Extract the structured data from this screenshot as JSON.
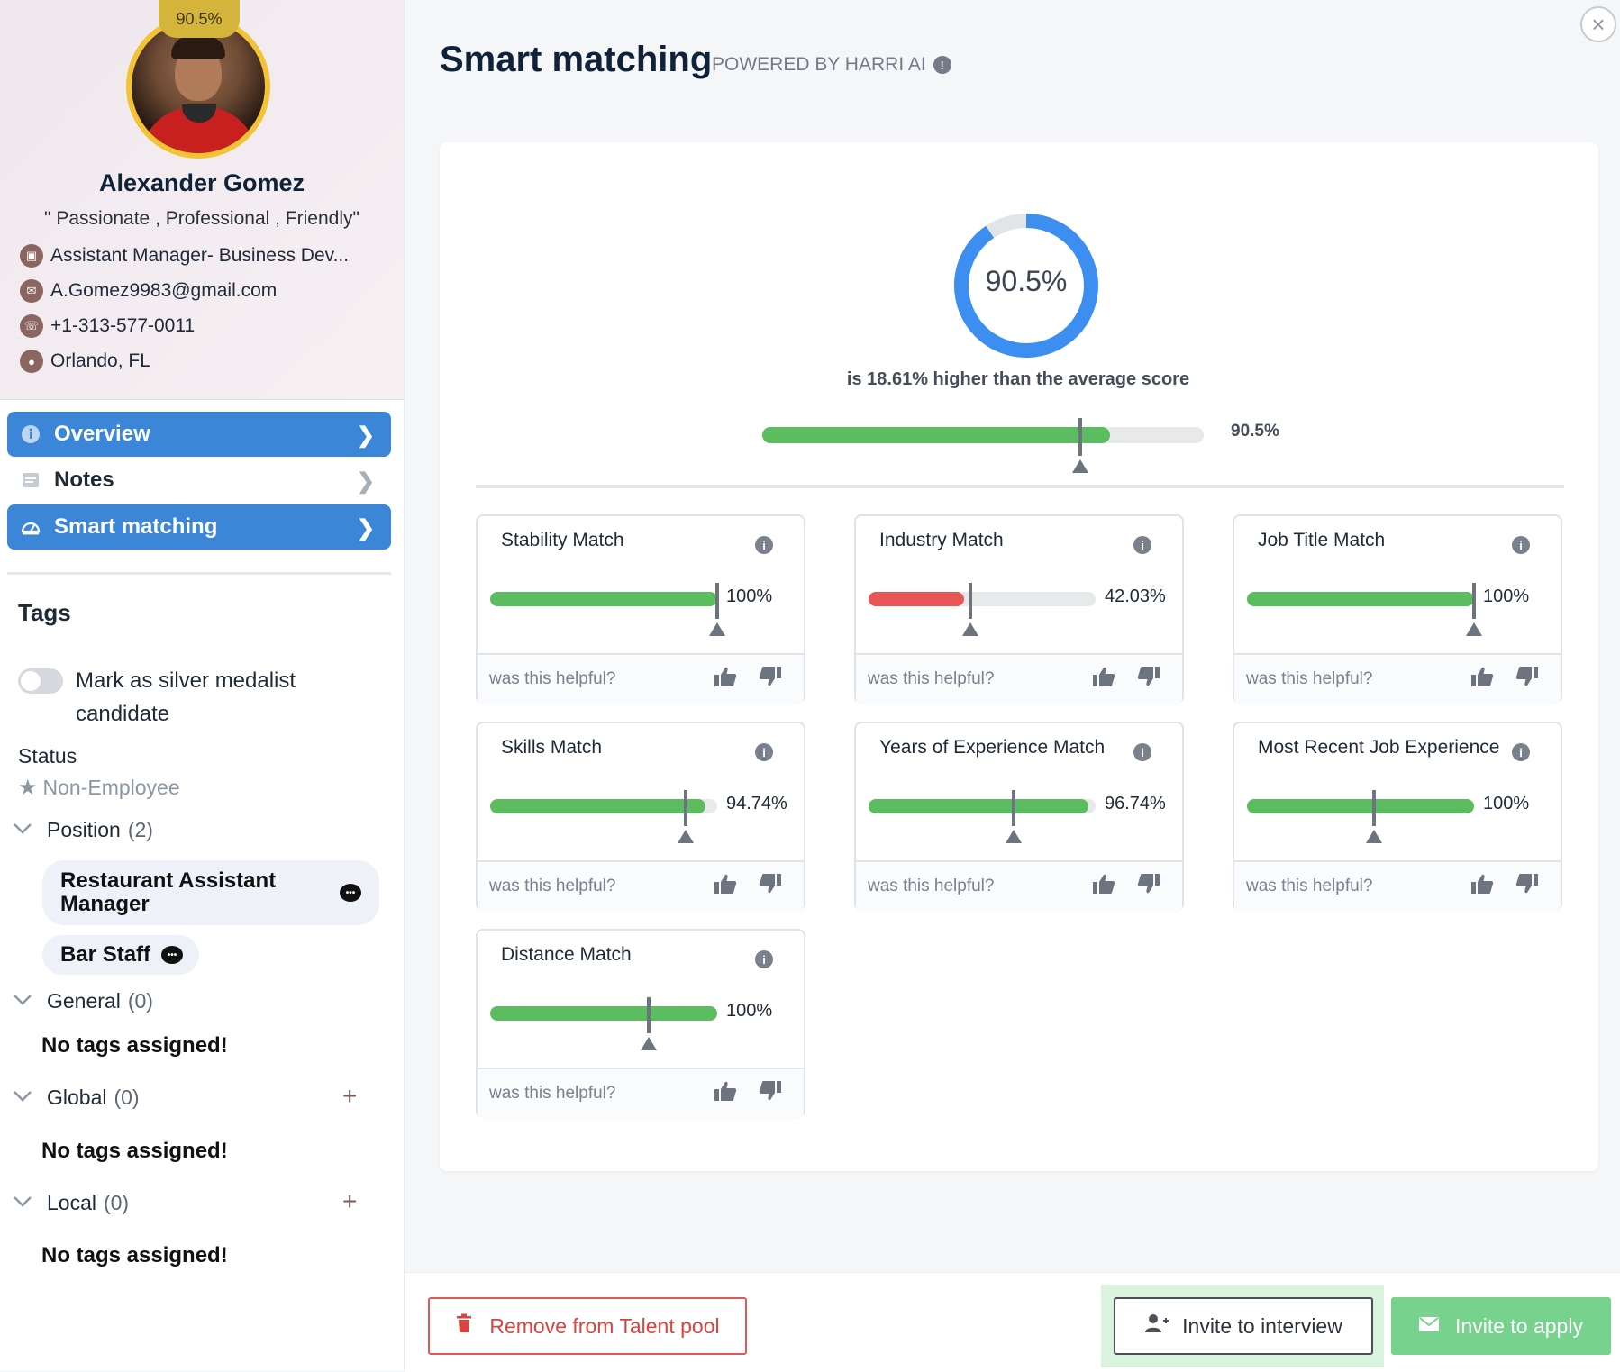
{
  "profile": {
    "score_badge": "90.5%",
    "name": "Alexander Gomez",
    "tagline": "\" Passionate , Professional , Friendly\"",
    "job": "Assistant Manager- Business Dev...",
    "email": "A.Gomez9983@gmail.com",
    "phone": "+1-313-577-0011",
    "location": "Orlando, FL"
  },
  "nav": [
    {
      "label": "Overview",
      "icon": "info-icon",
      "active": true
    },
    {
      "label": "Notes",
      "icon": "notes-icon",
      "active": false
    },
    {
      "label": "Smart matching",
      "icon": "gauge-icon",
      "active": true
    }
  ],
  "tags": {
    "title": "Tags",
    "silver_medalist_label": "Mark as silver medalist candidate",
    "silver_medalist_on": false,
    "status_label": "Status",
    "status_value": "Non-Employee",
    "groups": {
      "position": {
        "label": "Position",
        "count": "(2)",
        "chips": [
          "Restaurant Assistant Manager",
          "Bar Staff"
        ]
      },
      "general": {
        "label": "General",
        "count": "(0)",
        "empty": "No tags assigned!"
      },
      "global": {
        "label": "Global",
        "count": "(0)",
        "empty": "No tags assigned!"
      },
      "local": {
        "label": "Local",
        "count": "(0)",
        "empty": "No tags assigned!"
      }
    }
  },
  "main": {
    "title": "Smart matching",
    "powered_by": "POWERED BY HARRI AI",
    "overall": {
      "score_label": "90.5%",
      "score": 90.5,
      "average_text": "is 18.61% higher than the average score",
      "bar_value_label": "90.5%",
      "average_score": 71.89
    },
    "helpful_prompt": "was this helpful?",
    "matches": [
      {
        "title": "Stability Match",
        "value": 100,
        "label": "100%",
        "average": 100,
        "color": "#5bbd5f"
      },
      {
        "title": "Industry Match",
        "value": 42.03,
        "label": "42.03%",
        "average": 45,
        "color": "#e85656"
      },
      {
        "title": "Job Title Match",
        "value": 100,
        "label": "100%",
        "average": 100,
        "color": "#5bbd5f"
      },
      {
        "title": "Skills Match",
        "value": 94.74,
        "label": "94.74%",
        "average": 86,
        "color": "#5bbd5f"
      },
      {
        "title": "Years of Experience Match",
        "value": 96.74,
        "label": "96.74%",
        "average": 64,
        "color": "#5bbd5f"
      },
      {
        "title": "Most Recent Job Experience",
        "value": 100,
        "label": "100%",
        "average": 56,
        "color": "#5bbd5f"
      },
      {
        "title": "Distance Match",
        "value": 100,
        "label": "100%",
        "average": 70,
        "color": "#5bbd5f"
      }
    ]
  },
  "footer": {
    "remove_label": "Remove from Talent pool",
    "interview_label": "Invite to interview",
    "apply_label": "Invite to apply"
  }
}
